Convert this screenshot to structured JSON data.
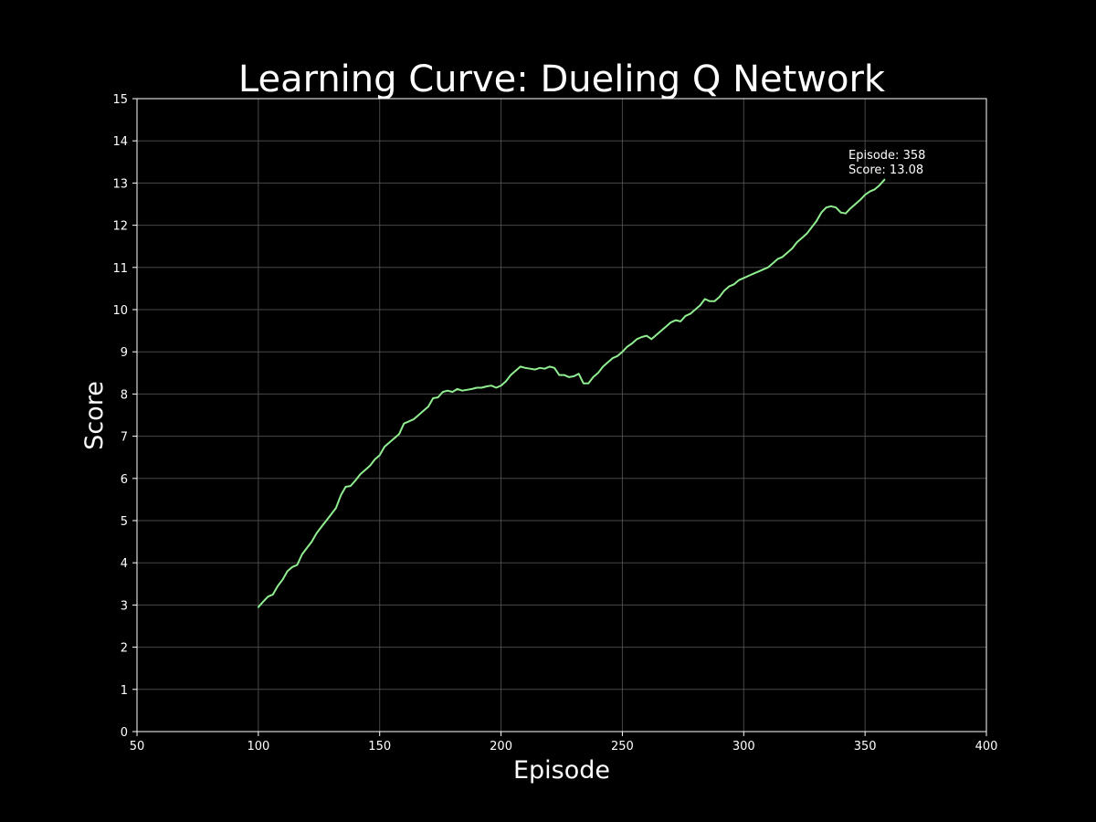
{
  "chart_data": {
    "type": "line",
    "title": "Learning Curve: Dueling Q Network",
    "xlabel": "Episode",
    "ylabel": "Score",
    "xlim": [
      50,
      400
    ],
    "ylim": [
      0,
      15
    ],
    "xticks": [
      50,
      100,
      150,
      200,
      250,
      300,
      350,
      400
    ],
    "yticks": [
      0,
      1,
      2,
      3,
      4,
      5,
      6,
      7,
      8,
      9,
      10,
      11,
      12,
      13,
      14,
      15
    ],
    "grid": true,
    "colors": {
      "background": "#000000",
      "line": "#90ee90",
      "grid": "#555555",
      "axes": "#ffffff",
      "text": "#ffffff"
    },
    "annotation": {
      "line1": "Episode: 358",
      "line2": "Score: 13.08"
    },
    "series": [
      {
        "x": [
          100,
          102,
          104,
          106,
          108,
          110,
          112,
          114,
          116,
          118,
          120,
          122,
          124,
          126,
          128,
          130,
          132,
          134,
          136,
          138,
          140,
          142,
          144,
          146,
          148,
          150,
          152,
          154,
          156,
          158,
          160,
          162,
          164,
          166,
          168,
          170,
          172,
          174,
          176,
          178,
          180,
          182,
          184,
          186,
          188,
          190,
          192,
          194,
          196,
          198,
          200,
          202,
          204,
          206,
          208,
          210,
          212,
          214,
          216,
          218,
          220,
          222,
          224,
          226,
          228,
          230,
          232,
          234,
          236,
          238,
          240,
          242,
          244,
          246,
          248,
          250,
          252,
          254,
          256,
          258,
          260,
          262,
          264,
          266,
          268,
          270,
          272,
          274,
          276,
          278,
          280,
          282,
          284,
          286,
          288,
          290,
          292,
          294,
          296,
          298,
          300,
          302,
          304,
          306,
          308,
          310,
          312,
          314,
          316,
          318,
          320,
          322,
          324,
          326,
          328,
          330,
          332,
          334,
          336,
          338,
          340,
          342,
          344,
          346,
          348,
          350,
          352,
          354,
          356,
          358
        ],
        "y": [
          2.95,
          3.08,
          3.2,
          3.25,
          3.45,
          3.6,
          3.8,
          3.9,
          3.95,
          4.2,
          4.35,
          4.5,
          4.7,
          4.85,
          5.0,
          5.15,
          5.3,
          5.6,
          5.8,
          5.82,
          5.95,
          6.1,
          6.2,
          6.3,
          6.45,
          6.55,
          6.75,
          6.85,
          6.95,
          7.05,
          7.3,
          7.35,
          7.4,
          7.5,
          7.6,
          7.7,
          7.9,
          7.92,
          8.05,
          8.08,
          8.05,
          8.12,
          8.08,
          8.1,
          8.12,
          8.15,
          8.15,
          8.18,
          8.2,
          8.15,
          8.2,
          8.3,
          8.45,
          8.55,
          8.65,
          8.62,
          8.6,
          8.58,
          8.62,
          8.6,
          8.65,
          8.62,
          8.45,
          8.45,
          8.4,
          8.42,
          8.48,
          8.25,
          8.25,
          8.4,
          8.5,
          8.65,
          8.75,
          8.85,
          8.9,
          9.0,
          9.12,
          9.2,
          9.3,
          9.35,
          9.38,
          9.3,
          9.4,
          9.5,
          9.6,
          9.7,
          9.75,
          9.72,
          9.85,
          9.9,
          10.0,
          10.1,
          10.25,
          10.2,
          10.2,
          10.3,
          10.45,
          10.55,
          10.6,
          10.7,
          10.75,
          10.8,
          10.85,
          10.9,
          10.95,
          11.0,
          11.1,
          11.2,
          11.25,
          11.35,
          11.45,
          11.6,
          11.7,
          11.8,
          11.95,
          12.1,
          12.3,
          12.42,
          12.45,
          12.42,
          12.3,
          12.28,
          12.4,
          12.5,
          12.6,
          12.72,
          12.8,
          12.85,
          12.95,
          13.08
        ]
      }
    ]
  }
}
